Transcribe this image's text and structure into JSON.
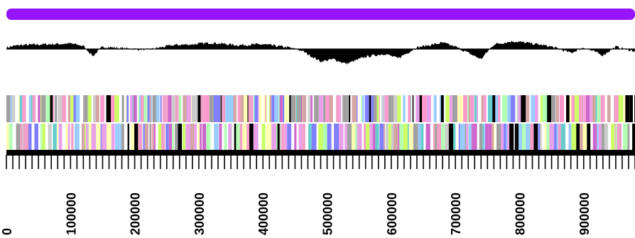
{
  "chart_data": {
    "type": "genome-map",
    "title": "",
    "xlabel": "",
    "ylabel": "",
    "x_range": [
      0,
      980000
    ],
    "tick_interval": 10000,
    "label_interval": 100000,
    "tick_labels": [
      "0",
      "100000",
      "200000",
      "300000",
      "400000",
      "500000",
      "600000",
      "700000",
      "800000",
      "900000"
    ],
    "tracks": [
      {
        "name": "sequence bar",
        "color": "#9614FF"
      },
      {
        "name": "gc skew plot",
        "color": "#000000",
        "profile_bp": [
          0,
          20000,
          60000,
          100000,
          120000,
          135000,
          150000,
          180000,
          220000,
          260000,
          290000,
          320000,
          360000,
          400000,
          440000,
          460000,
          490000,
          510000,
          530000,
          560000,
          590000,
          610000,
          640000,
          680000,
          700000,
          740000,
          760000,
          790000,
          820000,
          850000,
          880000,
          900000,
          930000,
          950000,
          980000
        ],
        "profile_value": [
          0.2,
          0.5,
          0.6,
          0.7,
          0.4,
          -0.9,
          0.3,
          0.1,
          -0.1,
          0.5,
          0.6,
          0.8,
          0.5,
          0.6,
          0.2,
          -0.2,
          -1.6,
          -1.3,
          -1.9,
          -1.0,
          -0.6,
          -1.2,
          0.2,
          0.8,
          0.3,
          -1.3,
          0.6,
          1.0,
          0.7,
          0.3,
          -0.5,
          0.2,
          -0.8,
          0.3,
          -0.3
        ]
      },
      {
        "name": "gene track forward",
        "colors": [
          "#000000",
          "#cc66cc",
          "#f2a0c8",
          "#b3ffb3",
          "#ffffb3",
          "#8080ff",
          "#66cccc",
          "#ff99cc",
          "#d4a5a5",
          "#a0a0a0",
          "#cccccc",
          "#e8a0e8",
          "#ccff66",
          "#99ccff"
        ]
      },
      {
        "name": "gene track reverse",
        "colors": [
          "#000000",
          "#cc66cc",
          "#f2a0c8",
          "#b3ffb3",
          "#ffffb3",
          "#8080ff",
          "#66cccc",
          "#ff99cc",
          "#d4a5a5",
          "#a0a0a0",
          "#cccccc",
          "#e8a0e8",
          "#ccff66",
          "#99ccff"
        ]
      },
      {
        "name": "scale axis",
        "color": "#000000"
      }
    ]
  }
}
